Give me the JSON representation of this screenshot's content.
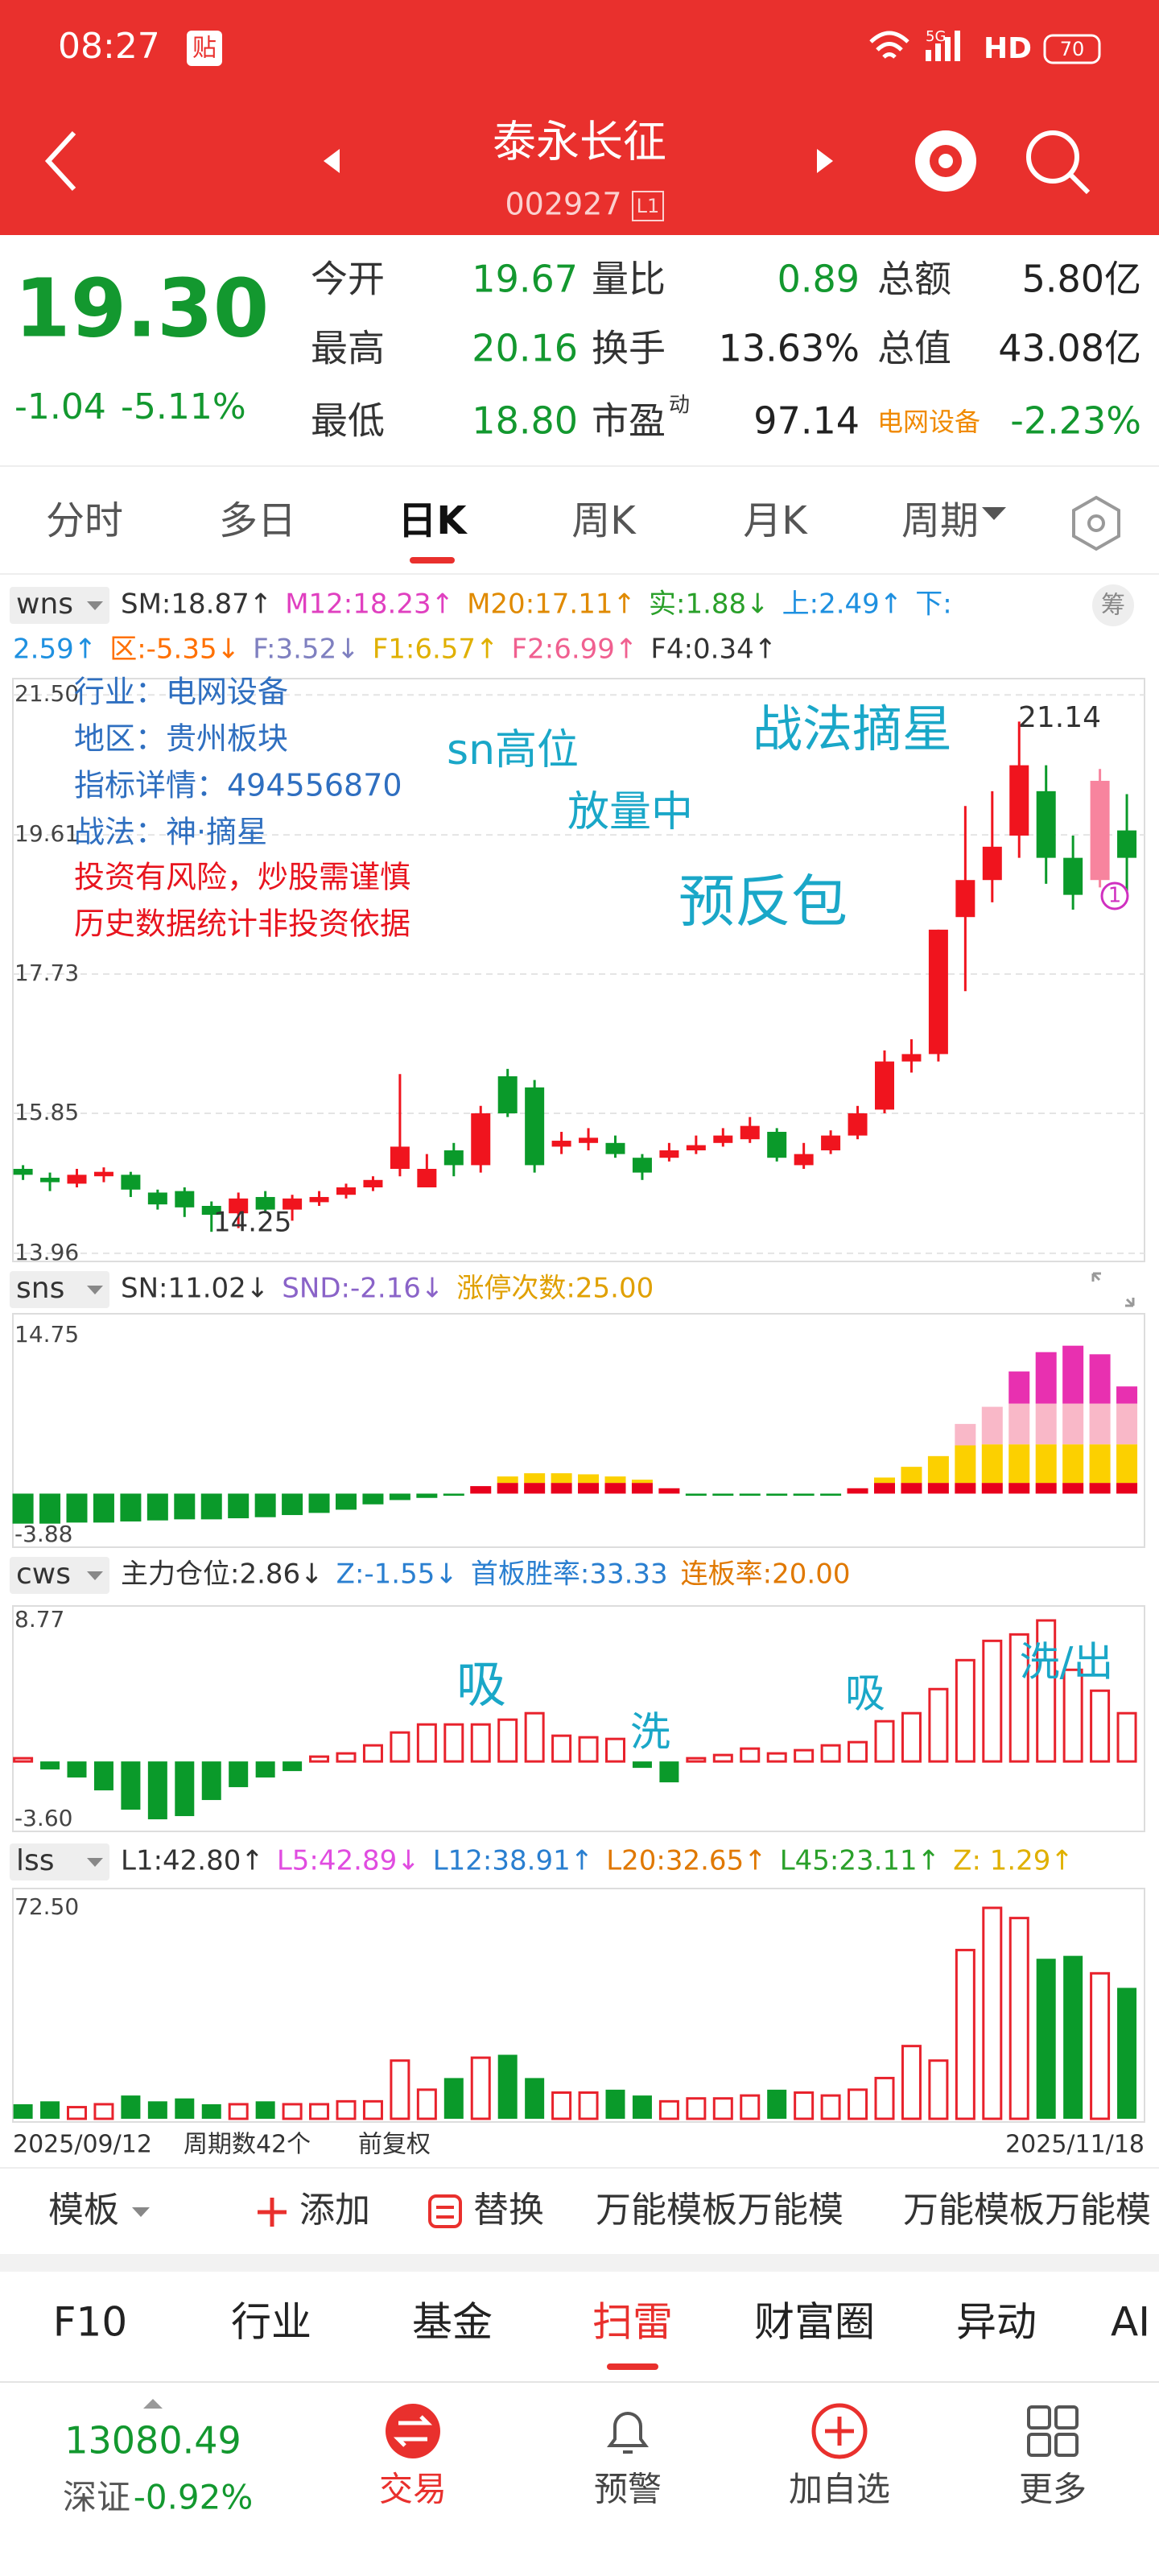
{
  "status_bar": {
    "time": "08:27",
    "badge": "贴",
    "network": "5G",
    "hd": "HD",
    "battery": "70"
  },
  "header": {
    "title": "泰永长征",
    "code": "002927",
    "level": "L1"
  },
  "quote": {
    "price": "19.30",
    "change": "-1.04",
    "change_pct": "-5.11%",
    "color": "#13982f",
    "fields": [
      [
        {
          "label": "今开",
          "value": "19.67",
          "color": "#13982f"
        },
        {
          "label": "量比",
          "value": "0.89",
          "color": "#13982f"
        },
        {
          "label": "总额",
          "value": "5.80亿",
          "color": "#222222"
        }
      ],
      [
        {
          "label": "最高",
          "value": "20.16",
          "color": "#13982f"
        },
        {
          "label": "换手",
          "value": "13.63%",
          "color": "#222222"
        },
        {
          "label": "总值",
          "value": "43.08亿",
          "color": "#222222"
        }
      ],
      [
        {
          "label": "最低",
          "value": "18.80",
          "color": "#13982f"
        },
        {
          "label": "市盈",
          "sup": "动",
          "value": "97.14",
          "color": "#222222"
        },
        {
          "label": "电网设备",
          "label_color": "#f08a00",
          "value": "-2.23%",
          "color": "#13982f"
        }
      ]
    ]
  },
  "tabs": {
    "items": [
      "分时",
      "多日",
      "日K",
      "周K",
      "月K",
      "周期"
    ],
    "active": 2
  },
  "chart_data": [
    {
      "type": "candlestick",
      "chip_button": "筹",
      "indicator": {
        "name": "wns",
        "rows": [
          [
            {
              "text": "SM:18.87↑",
              "color": "#333333"
            },
            {
              "text": "M12:18.23↑",
              "color": "#e040c0"
            },
            {
              "text": "M20:17.11↑",
              "color": "#e08a00"
            },
            {
              "text": "实:1.88↓",
              "color": "#2aa02a"
            },
            {
              "text": "上:2.49↑",
              "color": "#1e90e0"
            },
            {
              "text": "下:",
              "color": "#1e90e0"
            }
          ],
          [
            {
              "text": "2.59↑",
              "color": "#1e90e0"
            },
            {
              "text": "区:-5.35↓",
              "color": "#ff7000"
            },
            {
              "text": "F:3.52↓",
              "color": "#7f80c0"
            },
            {
              "text": "F1:6.57↑",
              "color": "#e0b000"
            },
            {
              "text": "F2:6.99↑",
              "color": "#f06090"
            },
            {
              "text": "F4:0.34↑",
              "color": "#333333"
            }
          ]
        ]
      },
      "open": [
        15.1,
        14.98,
        14.9,
        15.0,
        15.02,
        14.78,
        14.8,
        14.6,
        14.5,
        14.72,
        14.55,
        14.65,
        14.75,
        14.85,
        15.1,
        14.85,
        15.35,
        15.15,
        16.35,
        16.2,
        15.4,
        15.45,
        15.45,
        15.25,
        15.25,
        15.35,
        15.45,
        15.5,
        15.6,
        15.15,
        15.35,
        15.55,
        15.9,
        16.55,
        16.65,
        18.5,
        19.0,
        19.6,
        20.2,
        19.3,
        19.0,
        19.67
      ],
      "close": [
        15.02,
        14.92,
        15.02,
        15.06,
        14.82,
        14.62,
        14.58,
        14.48,
        14.7,
        14.55,
        14.7,
        14.72,
        14.85,
        14.95,
        15.4,
        15.1,
        15.15,
        15.85,
        15.85,
        15.15,
        15.48,
        15.52,
        15.3,
        15.05,
        15.35,
        15.42,
        15.55,
        15.68,
        15.25,
        15.3,
        15.55,
        15.85,
        16.55,
        16.65,
        18.33,
        19.0,
        19.45,
        20.55,
        19.3,
        18.8,
        20.34,
        19.3
      ],
      "high": [
        15.15,
        15.05,
        15.1,
        15.12,
        15.06,
        14.82,
        14.85,
        14.66,
        14.78,
        14.8,
        14.75,
        14.8,
        14.9,
        15.0,
        16.38,
        15.3,
        15.45,
        15.95,
        16.45,
        16.3,
        15.6,
        15.65,
        15.55,
        15.3,
        15.45,
        15.55,
        15.65,
        15.8,
        15.65,
        15.45,
        15.62,
        15.95,
        16.7,
        16.85,
        18.33,
        20.0,
        20.2,
        21.14,
        20.55,
        19.6,
        20.5,
        20.16
      ],
      "low": [
        14.95,
        14.8,
        14.85,
        14.92,
        14.72,
        14.55,
        14.45,
        14.25,
        14.3,
        14.5,
        14.4,
        14.6,
        14.7,
        14.8,
        15.0,
        14.85,
        15.0,
        15.05,
        15.8,
        15.05,
        15.3,
        15.35,
        15.25,
        14.95,
        15.2,
        15.3,
        15.4,
        15.45,
        15.2,
        15.1,
        15.3,
        15.5,
        15.85,
        16.4,
        16.55,
        17.5,
        18.7,
        19.3,
        18.95,
        18.6,
        18.9,
        18.8
      ],
      "ylim": [
        13.85,
        21.72
      ],
      "yticks": [
        {
          "value": 21.5,
          "label": "21.50"
        },
        19.61,
        17.73,
        15.85,
        13.96
      ],
      "grid": true,
      "up_color": "#f0141e",
      "down_color": "#0a9a2a",
      "highlight_index": 40,
      "highlight_color": "#f7849e",
      "annotations": [
        {
          "text": "行业：电网设备",
          "color": "#2f6fc0"
        },
        {
          "text": "地区：贵州板块",
          "color": "#2f6fc0"
        },
        {
          "text": "指标详情：494556870",
          "color": "#2f6fc0"
        },
        {
          "text": "战法：神·摘星",
          "color": "#2f6fc0"
        },
        {
          "text": "投资有风险，炒股需谨慎",
          "color": "#e8141e"
        },
        {
          "text": "历史数据统计非投资依据",
          "color": "#e8141e"
        },
        {
          "text": "sn高位",
          "color": "#1aa7c8"
        },
        {
          "text": "放量中",
          "color": "#1aa7c8"
        },
        {
          "text": "战法摘星",
          "color": "#1aa7c8"
        },
        {
          "text": "预反包",
          "color": "#1aa7c8"
        },
        {
          "text": "21.14",
          "color": "#333333"
        },
        {
          "text": "14.25",
          "color": "#333333"
        },
        {
          "text": "1",
          "color": "#d030c0"
        }
      ]
    },
    {
      "type": "stacked_bar",
      "indicator": {
        "name": "sns",
        "rows": [
          [
            {
              "text": "SN:11.02↓",
              "color": "#333333"
            },
            {
              "text": "SND:-2.16↓",
              "color": "#8a63c8"
            },
            {
              "text": "涨停次数:25.00",
              "color": "#e0a000"
            }
          ]
        ]
      },
      "series": [
        {
          "color": "#0a9a2a",
          "values": [
            -2.8,
            -2.8,
            -2.7,
            -2.7,
            -2.6,
            -2.5,
            -2.4,
            -2.4,
            -2.3,
            -2.2,
            -2.0,
            -1.8,
            -1.5,
            -1.0,
            -0.6,
            -0.4,
            -0.2,
            null,
            null,
            null,
            null,
            null,
            null,
            null,
            null,
            -0.2,
            -0.2,
            -0.2,
            -0.2,
            -0.2,
            -0.2,
            null,
            null,
            null,
            null,
            null,
            null,
            null,
            null,
            null,
            null,
            null
          ]
        },
        {
          "color": "#e8001c",
          "values": [
            null,
            null,
            null,
            null,
            null,
            null,
            null,
            null,
            null,
            null,
            null,
            null,
            null,
            null,
            null,
            null,
            null,
            0.7,
            1.0,
            1.0,
            1.0,
            1.0,
            1.0,
            1.0,
            0.5,
            null,
            null,
            null,
            null,
            null,
            null,
            0.5,
            1.0,
            1.0,
            1.0,
            1.0,
            1.0,
            1.0,
            1.0,
            1.0,
            1.0,
            1.0
          ]
        },
        {
          "color": "#fcd000",
          "values": [
            null,
            null,
            null,
            null,
            null,
            null,
            null,
            null,
            null,
            null,
            null,
            null,
            null,
            null,
            null,
            null,
            null,
            null,
            0.6,
            0.9,
            0.9,
            0.8,
            0.6,
            0.3,
            null,
            null,
            null,
            null,
            null,
            null,
            null,
            null,
            0.5,
            1.5,
            2.5,
            3.5,
            3.6,
            3.6,
            3.6,
            3.6,
            3.6,
            3.6
          ]
        },
        {
          "color": "#f9b8c8",
          "values": [
            null,
            null,
            null,
            null,
            null,
            null,
            null,
            null,
            null,
            null,
            null,
            null,
            null,
            null,
            null,
            null,
            null,
            null,
            null,
            null,
            null,
            null,
            null,
            null,
            null,
            null,
            null,
            null,
            null,
            null,
            null,
            null,
            null,
            null,
            null,
            2.0,
            3.5,
            3.8,
            3.8,
            3.8,
            3.8,
            3.8
          ]
        },
        {
          "color": "#e830b0",
          "values": [
            null,
            null,
            null,
            null,
            null,
            null,
            null,
            null,
            null,
            null,
            null,
            null,
            null,
            null,
            null,
            null,
            null,
            null,
            null,
            null,
            null,
            null,
            null,
            null,
            null,
            null,
            null,
            null,
            null,
            null,
            null,
            null,
            null,
            null,
            null,
            null,
            null,
            3.0,
            4.8,
            5.4,
            4.6,
            1.6
          ]
        }
      ],
      "ylim": [
        -5.0,
        16.78
      ],
      "yticks": [
        14.75,
        -3.88
      ]
    },
    {
      "type": "bar",
      "indicator": {
        "name": "cws",
        "rows": [
          [
            {
              "text": "主力仓位:2.86↓",
              "color": "#333333"
            },
            {
              "text": "Z:-1.55↓",
              "color": "#2a7fd0"
            },
            {
              "text": "首板胜率:33.33",
              "color": "#2a7fd0"
            },
            {
              "text": "连板率:20.00",
              "color": "#e07800"
            }
          ]
        ]
      },
      "values": [
        0.2,
        -0.5,
        -1.0,
        -1.8,
        -3.0,
        -3.6,
        -3.4,
        -2.4,
        -1.6,
        -1.0,
        -0.6,
        0.3,
        0.5,
        1.0,
        1.8,
        2.3,
        2.3,
        2.3,
        2.6,
        3.0,
        1.6,
        1.5,
        1.4,
        -0.4,
        -1.3,
        0.2,
        0.4,
        0.8,
        0.5,
        0.7,
        1.0,
        1.2,
        2.5,
        3.0,
        4.5,
        6.3,
        7.5,
        7.9,
        8.77,
        5.7,
        4.4,
        3.0
      ],
      "ylim": [
        -4.35,
        9.67
      ],
      "yticks": [
        8.77,
        {
          "value": -3.6,
          "label": "-3.60"
        }
      ],
      "pos_color": "#e8222c",
      "neg_color": "#0a9a2a",
      "annotations": [
        {
          "text": "吸",
          "color": "#1aa7c8"
        },
        {
          "text": "洗",
          "color": "#1aa7c8"
        },
        {
          "text": "吸",
          "color": "#1aa7c8"
        },
        {
          "text": "洗/出",
          "color": "#1aa7c8"
        }
      ]
    },
    {
      "type": "volume",
      "indicator": {
        "name": "lss",
        "rows": [
          [
            {
              "text": "L1:42.80↑",
              "color": "#333333"
            },
            {
              "text": "L5:42.89↓",
              "color": "#e04ce0"
            },
            {
              "text": "L12:38.91↑",
              "color": "#2a7fd0"
            },
            {
              "text": "L20:32.65↑",
              "color": "#e07800"
            },
            {
              "text": "L45:23.11↑",
              "color": "#2aa02a"
            },
            {
              "text": "Z: 1.29↑",
              "color": "#e0b000"
            }
          ]
        ]
      },
      "values": [
        5,
        6,
        4,
        5,
        8,
        6,
        7,
        5,
        5,
        6,
        5,
        5,
        6,
        6,
        20,
        10,
        14,
        21,
        22,
        14,
        9,
        9,
        10,
        8,
        6,
        7,
        7,
        8,
        10,
        9,
        8,
        10,
        14,
        25,
        20,
        58,
        72.5,
        69,
        55,
        56,
        50,
        45
      ],
      "ylim": [
        -1.1,
        79.14
      ],
      "yticks": [
        {
          "value": 72.5,
          "label": "72.50"
        }
      ],
      "up_color": "#e8222c",
      "down_color": "#0a9a2a"
    }
  ],
  "axis_footer": {
    "start": "2025/09/12",
    "count": "周期数42个",
    "adjust": "前复权",
    "end": "2025/11/18"
  },
  "toolbar": {
    "template": "模板",
    "add": "添加",
    "replace": "替换",
    "items": [
      "万能模板万能模",
      "万能模板万能模"
    ]
  },
  "bottom_tabs": {
    "items": [
      "F10",
      "行业",
      "基金",
      "扫雷",
      "财富圈",
      "异动",
      "AI"
    ],
    "active": 3
  },
  "nav": {
    "index_value": "13080.49",
    "index_name": "深证",
    "index_change": "-0.92%",
    "items": [
      "交易",
      "预警",
      "加自选",
      "更多"
    ],
    "active": 0
  }
}
